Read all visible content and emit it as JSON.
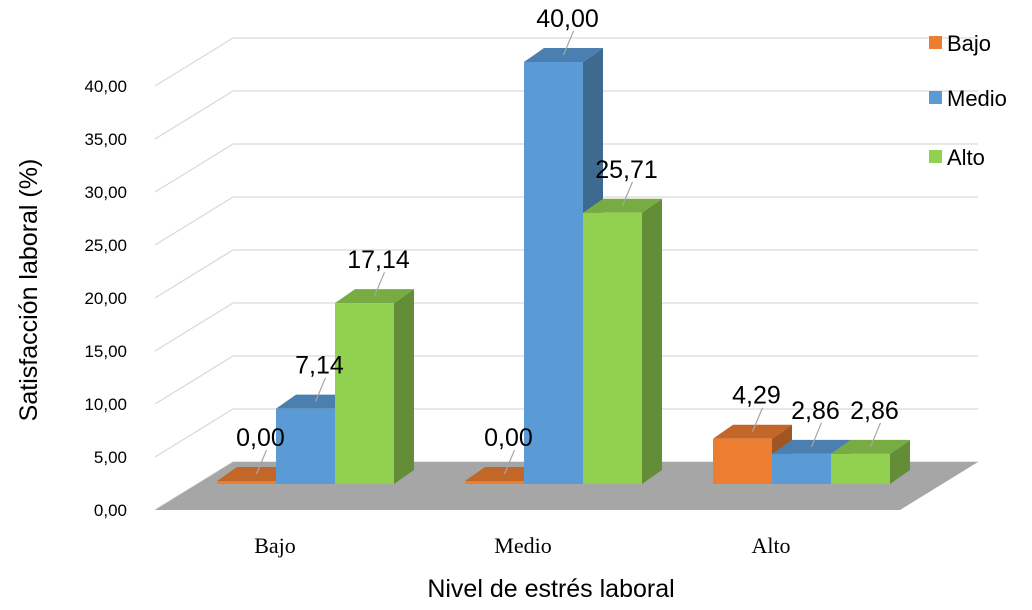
{
  "chart_data": {
    "type": "bar",
    "subtype": "3d-clustered-column",
    "title": "",
    "xlabel": "Nivel de estrés laboral",
    "ylabel": "Satisfacción laboral (%)",
    "categories": [
      "Bajo",
      "Medio",
      "Alto"
    ],
    "series": [
      {
        "name": "Bajo",
        "values": [
          0,
          0,
          4.29
        ],
        "color": "#ED7D31",
        "labels": [
          "0,00",
          "0,00",
          "4,29"
        ]
      },
      {
        "name": "Medio",
        "values": [
          7.14,
          40,
          2.86
        ],
        "color": "#5B9BD5",
        "labels": [
          "7,14",
          "40,00",
          "2,86"
        ]
      },
      {
        "name": "Alto",
        "values": [
          17.14,
          25.71,
          2.86
        ],
        "color": "#92D050",
        "labels": [
          "17,14",
          "25,71",
          "2,86"
        ]
      }
    ],
    "ylim": [
      0,
      40
    ],
    "yticks": [
      "0,00",
      "5,00",
      "10,00",
      "15,00",
      "20,00",
      "25,00",
      "30,00",
      "35,00",
      "40,00"
    ],
    "grid": true,
    "legend": "right",
    "floor_color": "#A6A6A6"
  }
}
